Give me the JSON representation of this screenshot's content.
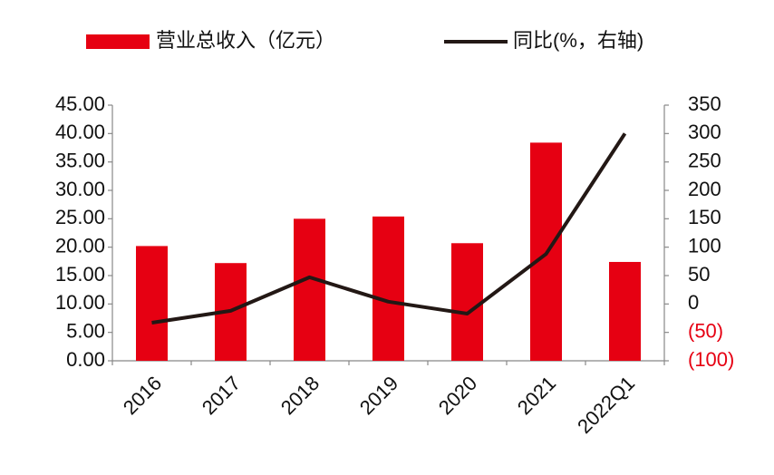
{
  "chart_data": {
    "type": "combo",
    "categories": [
      "2016",
      "2017",
      "2018",
      "2019",
      "2020",
      "2021",
      "2022Q1"
    ],
    "series": [
      {
        "name": "营业总收入（亿元）",
        "type": "bar",
        "color": "#e60012",
        "values": [
          20.2,
          17.2,
          25.0,
          25.4,
          20.7,
          38.4,
          17.4
        ]
      },
      {
        "name": "同比(%，右轴)",
        "type": "line",
        "axis": "y2",
        "color": "#231815",
        "values": [
          -33,
          -12,
          47,
          4,
          -17,
          88,
          300
        ]
      }
    ],
    "ylim": [
      0,
      45
    ],
    "yticks": [
      {
        "value": 0,
        "label": "0.00"
      },
      {
        "value": 5,
        "label": "5.00"
      },
      {
        "value": 10,
        "label": "10.00"
      },
      {
        "value": 15,
        "label": "15.00"
      },
      {
        "value": 20,
        "label": "20.00"
      },
      {
        "value": 25,
        "label": "25.00"
      },
      {
        "value": 30,
        "label": "30.00"
      },
      {
        "value": 35,
        "label": "35.00"
      },
      {
        "value": 40,
        "label": "40.00"
      },
      {
        "value": 45,
        "label": "45.00"
      }
    ],
    "y2lim": [
      -100,
      350
    ],
    "y2ticks": [
      {
        "value": -100,
        "label": "(100)"
      },
      {
        "value": -50,
        "label": "(50)"
      },
      0,
      50,
      100,
      150,
      200,
      250,
      300,
      350
    ],
    "negative_tick_color": "#e60012"
  }
}
